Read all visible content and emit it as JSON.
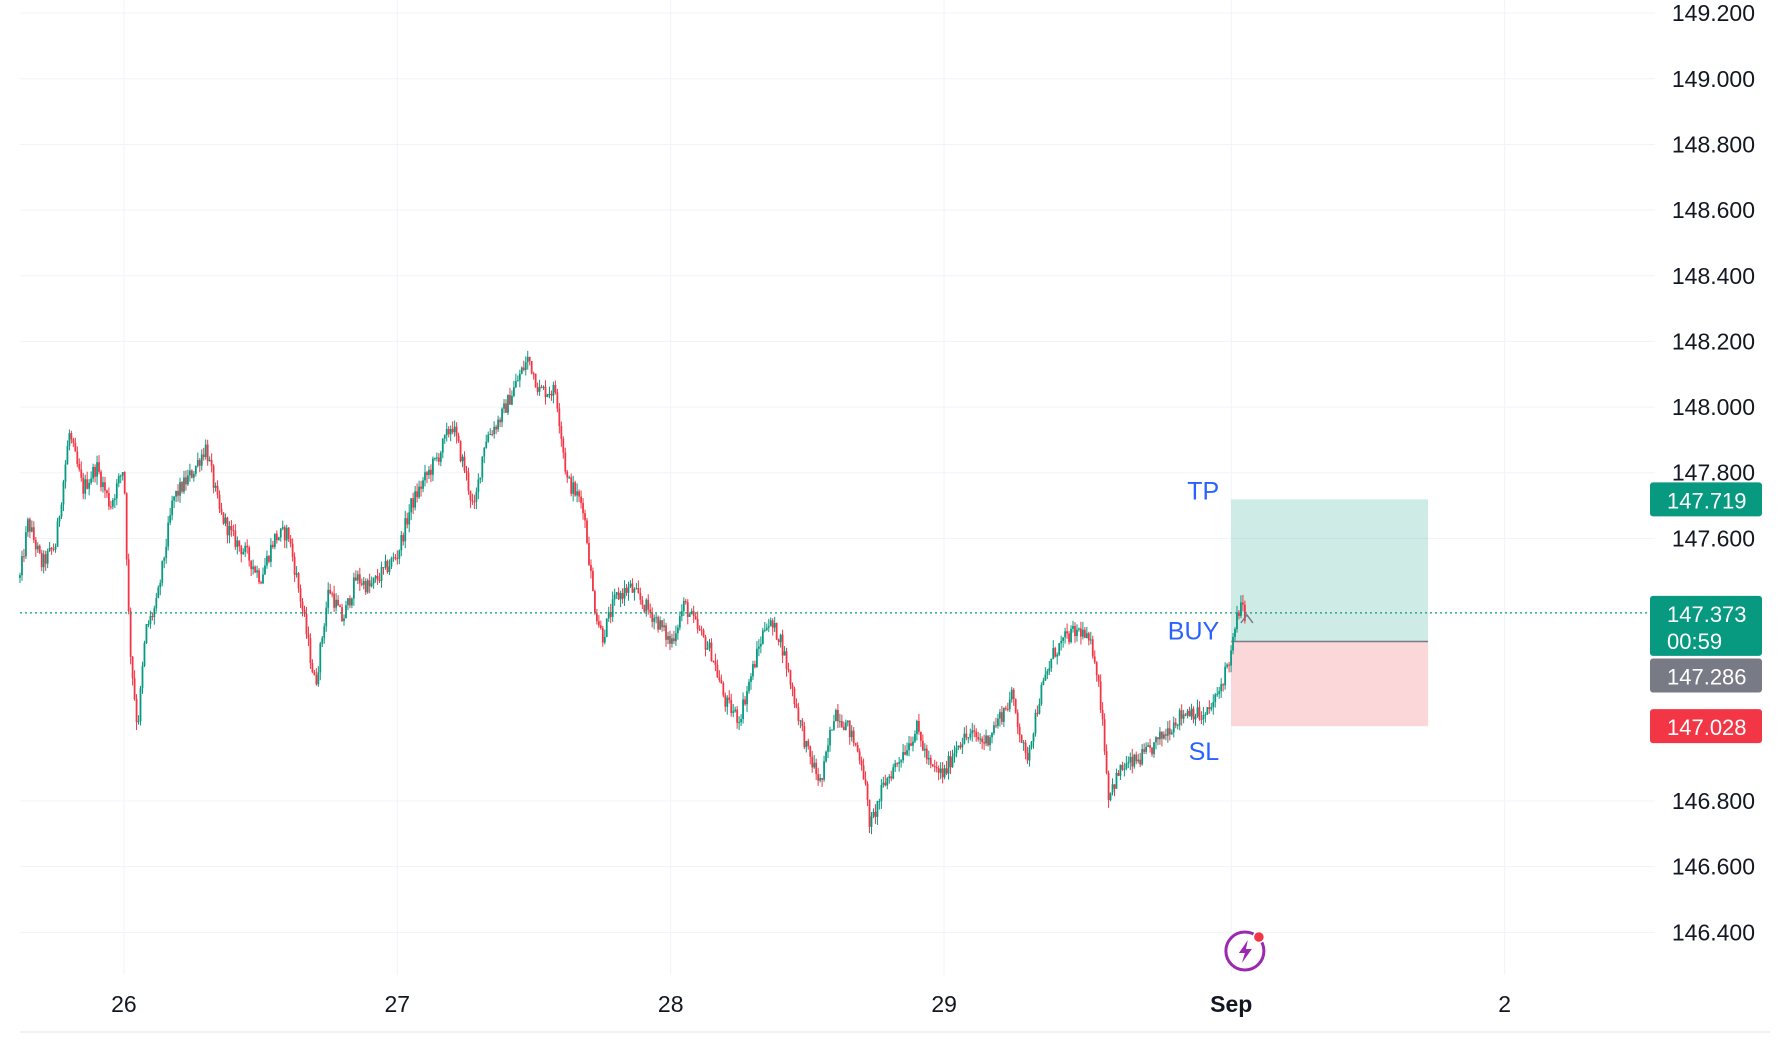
{
  "chart_data": {
    "type": "candlestick",
    "y_axis": {
      "range": [
        146.27,
        149.24
      ],
      "ticks": [
        "149.200",
        "149.000",
        "148.800",
        "148.600",
        "148.400",
        "148.200",
        "148.000",
        "147.800",
        "147.600",
        "146.800",
        "146.600",
        "146.400"
      ]
    },
    "x_axis": {
      "ticks": [
        {
          "label": "26",
          "x": 0
        },
        {
          "label": "27",
          "x": 1
        },
        {
          "label": "28",
          "x": 2
        },
        {
          "label": "29",
          "x": 3
        },
        {
          "label": "Sep",
          "x": 4.05
        },
        {
          "label": "2",
          "x": 5.05
        }
      ],
      "range": [
        -0.38,
        5.6
      ]
    },
    "grid": true,
    "current_price": "147.373",
    "countdown": "00:59",
    "entry_price": "147.286",
    "take_profit": "147.719",
    "stop_loss": "147.028",
    "position": {
      "side_label": "BUY",
      "tp_label": "TP",
      "sl_label": "SL",
      "start_x": 4.05,
      "end_x": 4.77,
      "entry": 147.286,
      "tp": 147.719,
      "sl": 147.028
    },
    "price_path": [
      [
        -0.38,
        147.48
      ],
      [
        -0.35,
        147.65
      ],
      [
        -0.3,
        147.52
      ],
      [
        -0.25,
        147.58
      ],
      [
        -0.2,
        147.92
      ],
      [
        -0.15,
        147.75
      ],
      [
        -0.1,
        147.82
      ],
      [
        -0.05,
        147.7
      ],
      [
        0,
        147.82
      ],
      [
        0.02,
        147.3
      ],
      [
        0.03,
        147.2
      ],
      [
        0.05,
        147.02
      ],
      [
        0.08,
        147.32
      ],
      [
        0.12,
        147.4
      ],
      [
        0.18,
        147.72
      ],
      [
        0.25,
        147.8
      ],
      [
        0.3,
        147.88
      ],
      [
        0.35,
        147.68
      ],
      [
        0.4,
        147.6
      ],
      [
        0.45,
        147.55
      ],
      [
        0.5,
        147.48
      ],
      [
        0.55,
        147.6
      ],
      [
        0.6,
        147.62
      ],
      [
        0.65,
        147.4
      ],
      [
        0.7,
        147.15
      ],
      [
        0.75,
        147.45
      ],
      [
        0.8,
        147.35
      ],
      [
        0.85,
        147.48
      ],
      [
        0.9,
        147.45
      ],
      [
        1.0,
        147.55
      ],
      [
        1.05,
        147.7
      ],
      [
        1.1,
        147.78
      ],
      [
        1.15,
        147.85
      ],
      [
        1.2,
        147.95
      ],
      [
        1.25,
        147.8
      ],
      [
        1.28,
        147.68
      ],
      [
        1.32,
        147.9
      ],
      [
        1.38,
        147.97
      ],
      [
        1.45,
        148.1
      ],
      [
        1.48,
        148.15
      ],
      [
        1.52,
        148.05
      ],
      [
        1.58,
        148.05
      ],
      [
        1.62,
        147.78
      ],
      [
        1.68,
        147.7
      ],
      [
        1.72,
        147.4
      ],
      [
        1.75,
        147.3
      ],
      [
        1.8,
        147.42
      ],
      [
        1.85,
        147.45
      ],
      [
        1.9,
        147.4
      ],
      [
        1.95,
        147.35
      ],
      [
        2.0,
        147.28
      ],
      [
        2.05,
        147.4
      ],
      [
        2.1,
        147.32
      ],
      [
        2.15,
        147.25
      ],
      [
        2.2,
        147.1
      ],
      [
        2.25,
        147.05
      ],
      [
        2.3,
        147.2
      ],
      [
        2.35,
        147.35
      ],
      [
        2.4,
        147.3
      ],
      [
        2.45,
        147.12
      ],
      [
        2.5,
        146.95
      ],
      [
        2.55,
        146.85
      ],
      [
        2.6,
        147.08
      ],
      [
        2.65,
        147.02
      ],
      [
        2.7,
        146.92
      ],
      [
        2.73,
        146.72
      ],
      [
        2.78,
        146.85
      ],
      [
        2.85,
        146.95
      ],
      [
        2.9,
        147.02
      ],
      [
        2.95,
        146.9
      ],
      [
        3.0,
        146.88
      ],
      [
        3.05,
        146.98
      ],
      [
        3.1,
        147.0
      ],
      [
        3.15,
        146.98
      ],
      [
        3.2,
        147.05
      ],
      [
        3.25,
        147.12
      ],
      [
        3.3,
        146.92
      ],
      [
        3.35,
        147.12
      ],
      [
        3.4,
        147.25
      ],
      [
        3.45,
        147.3
      ],
      [
        3.5,
        147.32
      ],
      [
        3.55,
        147.25
      ],
      [
        3.58,
        147.05
      ],
      [
        3.6,
        146.82
      ],
      [
        3.65,
        146.9
      ],
      [
        3.7,
        146.92
      ],
      [
        3.75,
        146.95
      ],
      [
        3.8,
        147.0
      ],
      [
        3.85,
        147.05
      ],
      [
        3.9,
        147.08
      ],
      [
        3.95,
        147.05
      ],
      [
        4.0,
        147.12
      ],
      [
        4.03,
        147.2
      ],
      [
        4.05,
        147.25
      ],
      [
        4.07,
        147.35
      ],
      [
        4.08,
        147.39
      ],
      [
        4.1,
        147.373
      ]
    ]
  }
}
